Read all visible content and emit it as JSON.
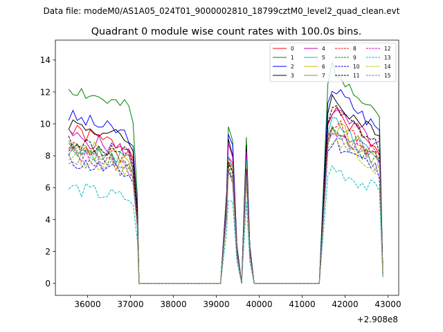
{
  "chart_data": {
    "type": "line",
    "suptitle": "Data file: modeM0/AS1A05_024T01_9000002810_18799cztM0_level2_quad_clean.evt",
    "title": "Quadrant 0 module wise count rates with 100.0s bins.",
    "xlabel": "",
    "ylabel": "",
    "x_offset_label": "+2.908e8",
    "xlim": [
      35250,
      43250
    ],
    "ylim": [
      -0.75,
      15.25
    ],
    "xticks": [
      36000,
      37000,
      38000,
      39000,
      40000,
      41000,
      42000,
      43000
    ],
    "yticks": [
      0,
      2,
      4,
      6,
      8,
      10,
      12,
      14
    ],
    "legend_position": "top-right",
    "segments": [
      {
        "start": 35560,
        "end": 37060
      },
      {
        "start": 39180,
        "end": 39780
      },
      {
        "start": 41600,
        "end": 42800
      }
    ],
    "series": [
      {
        "name": "0",
        "color": "#ff0000",
        "dash": "solid",
        "base": 9.6,
        "mid": 8.2,
        "end": 10.8,
        "seed": 1
      },
      {
        "name": "1",
        "color": "#008000",
        "dash": "solid",
        "base": 12.3,
        "mid": 9.6,
        "end": 13.6,
        "seed": 2
      },
      {
        "name": "2",
        "color": "#0000ff",
        "dash": "solid",
        "base": 10.5,
        "mid": 9.2,
        "end": 12.3,
        "seed": 3
      },
      {
        "name": "3",
        "color": "#000000",
        "dash": "solid",
        "base": 10.1,
        "mid": 9.0,
        "end": 11.6,
        "seed": 4
      },
      {
        "name": "4",
        "color": "#bf00bf",
        "dash": "solid",
        "base": 9.3,
        "mid": 8.8,
        "end": 10.9,
        "seed": 5
      },
      {
        "name": "5",
        "color": "#00bfbf",
        "dash": "solid",
        "base": 8.6,
        "mid": 8.0,
        "end": 10.2,
        "seed": 6
      },
      {
        "name": "6",
        "color": "#bfbf00",
        "dash": "solid",
        "base": 8.9,
        "mid": 7.8,
        "end": 10.0,
        "seed": 7
      },
      {
        "name": "7",
        "color": "#808080",
        "dash": "solid",
        "base": 8.4,
        "mid": 7.9,
        "end": 9.7,
        "seed": 8
      },
      {
        "name": "8",
        "color": "#ff0000",
        "dash": "dashed",
        "base": 8.7,
        "mid": 7.4,
        "end": 10.1,
        "seed": 9
      },
      {
        "name": "9",
        "color": "#008000",
        "dash": "dashed",
        "base": 8.5,
        "mid": 7.3,
        "end": 9.6,
        "seed": 10
      },
      {
        "name": "10",
        "color": "#0000ff",
        "dash": "dashed",
        "base": 7.7,
        "mid": 7.0,
        "end": 9.0,
        "seed": 11
      },
      {
        "name": "11",
        "color": "#000000",
        "dash": "dashed",
        "base": 9.0,
        "mid": 7.6,
        "end": 10.9,
        "seed": 12
      },
      {
        "name": "12",
        "color": "#bf00bf",
        "dash": "dashed",
        "base": 8.2,
        "mid": 7.1,
        "end": 9.8,
        "seed": 13
      },
      {
        "name": "13",
        "color": "#00bfbf",
        "dash": "dashed",
        "base": 6.0,
        "mid": 5.4,
        "end": 7.3,
        "seed": 14
      },
      {
        "name": "14",
        "color": "#bfbf00",
        "dash": "dashed",
        "base": 8.0,
        "mid": 6.9,
        "end": 9.2,
        "seed": 15
      },
      {
        "name": "15",
        "color": "#808080",
        "dash": "dashed",
        "base": 7.9,
        "mid": 7.0,
        "end": 9.4,
        "seed": 16
      }
    ]
  }
}
